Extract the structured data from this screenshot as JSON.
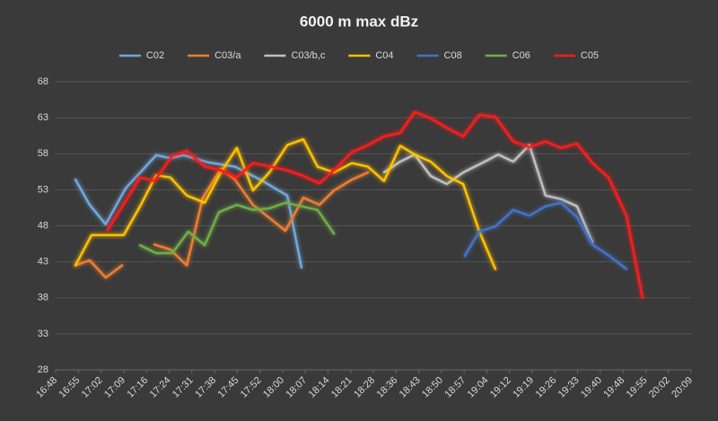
{
  "chart_data": {
    "type": "line",
    "title": "6000 m max dBz",
    "xlim": [
      1008,
      1209.6
    ],
    "xticks": [
      {
        "value": 1008,
        "label": "16:48"
      },
      {
        "value": 1015.2,
        "label": "16:55"
      },
      {
        "value": 1022.4,
        "label": "17:02"
      },
      {
        "value": 1029.6,
        "label": "17:09"
      },
      {
        "value": 1036.8,
        "label": "17:16"
      },
      {
        "value": 1044,
        "label": "17:24"
      },
      {
        "value": 1051.2,
        "label": "17:31"
      },
      {
        "value": 1058.4,
        "label": "17:38"
      },
      {
        "value": 1065.6,
        "label": "17:45"
      },
      {
        "value": 1072.8,
        "label": "17:52"
      },
      {
        "value": 1080,
        "label": "18:00"
      },
      {
        "value": 1087.2,
        "label": "18:07"
      },
      {
        "value": 1094.4,
        "label": "18:14"
      },
      {
        "value": 1101.6,
        "label": "18:21"
      },
      {
        "value": 1108.8,
        "label": "18:28"
      },
      {
        "value": 1116,
        "label": "18:36"
      },
      {
        "value": 1123.2,
        "label": "18:43"
      },
      {
        "value": 1130.4,
        "label": "18:50"
      },
      {
        "value": 1137.6,
        "label": "18:57"
      },
      {
        "value": 1144.8,
        "label": "19:04"
      },
      {
        "value": 1152,
        "label": "19:12"
      },
      {
        "value": 1159.2,
        "label": "19:19"
      },
      {
        "value": 1166.4,
        "label": "19:26"
      },
      {
        "value": 1173.6,
        "label": "19:33"
      },
      {
        "value": 1180.8,
        "label": "19:40"
      },
      {
        "value": 1188,
        "label": "19:48"
      },
      {
        "value": 1195.2,
        "label": "19:55"
      },
      {
        "value": 1202.4,
        "label": "20:02"
      },
      {
        "value": 1209.6,
        "label": "20:09"
      }
    ],
    "ylim": [
      28,
      68
    ],
    "yticks": [
      28,
      33,
      38,
      43,
      48,
      53,
      58,
      63,
      68
    ],
    "grid": true,
    "legend": "top",
    "series": [
      {
        "name": "C02",
        "color": "#6fa8dc",
        "x": [
          1014.3,
          1018.8,
          1023.9,
          1030.2,
          1039.9,
          1044.4,
          1048.7,
          1056.4,
          1064.9,
          1072.9,
          1081.5,
          1086.0
        ],
        "values": [
          54.4,
          50.9,
          48.2,
          53.2,
          57.8,
          57.4,
          57.8,
          56.8,
          56.2,
          54.4,
          52.2,
          42.2
        ]
      },
      {
        "name": "C03/a",
        "color": "#ed7d31",
        "x": [
          1014.3,
          1018.8,
          1023.9,
          1029.1,
          1034.8,
          1039.3,
          1044.4,
          1049.6,
          1054.7,
          1060.4,
          1064.9,
          1070.6,
          1075.8,
          1080.9,
          1086.6,
          1091.7,
          1096.3,
          1102.0,
          1107.1
        ],
        "values": [
          42.5,
          43.2,
          40.8,
          42.5,
          null,
          45.4,
          44.7,
          42.5,
          51.9,
          55.9,
          54.4,
          50.9,
          49.1,
          47.3,
          51.9,
          50.9,
          52.9,
          54.4,
          55.4
        ]
      },
      {
        "name": "C03/b,c",
        "color": "#bfbfbf",
        "x": [
          1112.2,
          1117.3,
          1121.9,
          1127.0,
          1132.1,
          1137.3,
          1144.1,
          1148.4,
          1153.2,
          1158.3,
          1163.4,
          1168.3,
          1173.4,
          1178.3
        ],
        "values": [
          55.4,
          56.9,
          57.9,
          54.9,
          53.8,
          55.4,
          56.9,
          57.9,
          56.9,
          59.2,
          52.2,
          51.7,
          50.7,
          45.7
        ]
      },
      {
        "name": "C04",
        "color": "#ffc000",
        "x": [
          1014.3,
          1019.4,
          1024.5,
          1029.6,
          1034.8,
          1039.9,
          1044.4,
          1049.6,
          1055.3,
          1060.4,
          1065.5,
          1070.6,
          1075.8,
          1081.5,
          1086.6,
          1091.1,
          1096.3,
          1102.0,
          1107.1,
          1112.2,
          1117.3,
          1121.9,
          1127.0,
          1132.1,
          1137.3,
          1142.4,
          1147.5
        ],
        "values": [
          42.5,
          46.7,
          46.7,
          46.7,
          50.7,
          55.0,
          54.7,
          52.2,
          51.2,
          55.4,
          58.8,
          52.9,
          55.4,
          59.2,
          60.0,
          56.2,
          55.4,
          56.7,
          56.2,
          54.2,
          59.1,
          57.9,
          56.9,
          54.9,
          53.8,
          47.2,
          42.0
        ]
      },
      {
        "name": "C08",
        "color": "#4472c4",
        "x": [
          1137.8,
          1142.4,
          1147.5,
          1153.2,
          1158.3,
          1163.4,
          1168.3,
          1173.4,
          1178.3,
          1183.4,
          1189.1
        ],
        "values": [
          43.8,
          47.2,
          47.9,
          50.2,
          49.4,
          50.7,
          51.2,
          49.2,
          45.4,
          43.9,
          42.0
        ]
      },
      {
        "name": "C06",
        "color": "#70ad47",
        "x": [
          1034.8,
          1039.9,
          1045.0,
          1050.1,
          1055.3,
          1059.8,
          1065.5,
          1070.6,
          1075.8,
          1080.9,
          1086.0,
          1091.1,
          1096.3
        ],
        "values": [
          45.3,
          44.2,
          44.2,
          47.2,
          45.3,
          49.9,
          50.9,
          50.2,
          50.4,
          51.2,
          50.7,
          50.2,
          46.9
        ]
      },
      {
        "name": "C05",
        "color": "#ff1a1a",
        "x": [
          1024.5,
          1034.8,
          1039.3,
          1045.0,
          1049.6,
          1055.3,
          1060.4,
          1065.5,
          1070.6,
          1076.3,
          1081.5,
          1086.6,
          1091.7,
          1096.3,
          1102.0,
          1107.1,
          1112.2,
          1117.3,
          1121.9,
          1127.0,
          1132.1,
          1137.3,
          1142.4,
          1147.5,
          1153.2,
          1158.3,
          1163.4,
          1168.3,
          1173.4,
          1178.3,
          1183.4,
          1189.1,
          1194.2
        ],
        "values": [
          47.4,
          54.7,
          54.2,
          57.7,
          58.4,
          56.2,
          55.7,
          54.7,
          56.7,
          56.2,
          55.7,
          54.9,
          53.9,
          55.7,
          58.2,
          59.2,
          60.4,
          60.9,
          63.8,
          62.9,
          61.6,
          60.4,
          63.4,
          63.1,
          59.7,
          58.9,
          59.7,
          58.8,
          59.4,
          56.7,
          54.7,
          49.4,
          38.0
        ]
      }
    ]
  }
}
